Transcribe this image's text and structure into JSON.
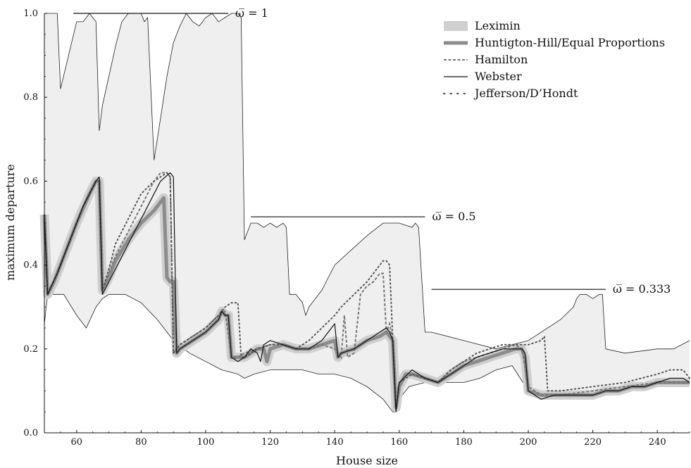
{
  "chart_data": {
    "type": "line",
    "xlabel": "House size",
    "ylabel": "maximum departure",
    "xlim": [
      50,
      250
    ],
    "ylim": [
      0,
      1
    ],
    "x_ticks": [
      60,
      80,
      100,
      120,
      140,
      160,
      180,
      200,
      220,
      240
    ],
    "y_ticks": [
      0.0,
      0.2,
      0.4,
      0.6,
      0.8,
      1.0
    ],
    "x_tick_labels": [
      "60",
      "80",
      "100",
      "120",
      "140",
      "160",
      "180",
      "200",
      "220",
      "240"
    ],
    "y_tick_labels": [
      "0.0",
      "0.2",
      "0.4",
      "0.6",
      "0.8",
      "1.0"
    ],
    "legend_position": "top-right",
    "legend": [
      {
        "label": "Leximin",
        "style": "band"
      },
      {
        "label": "Huntigton-Hill/Equal Proportions",
        "style": "thick"
      },
      {
        "label": "Hamilton",
        "style": "dashed"
      },
      {
        "label": "Webster",
        "style": "thin"
      },
      {
        "label": "Jefferson/D’Hondt",
        "style": "dotted"
      }
    ],
    "annotations": [
      {
        "label": "ω̅ = 1",
        "y": 1.0,
        "x_start": 59,
        "x_end": 107
      },
      {
        "label": "ω̅ = 0.5",
        "y": 0.515,
        "x_start": 114,
        "x_end": 168
      },
      {
        "label": "ω̅ = 0.333",
        "y": 0.342,
        "x_start": 170,
        "x_end": 224
      }
    ],
    "series": [
      {
        "name": "Leximin range upper",
        "x": [
          50,
          54,
          55,
          60,
          62,
          64,
          66,
          67,
          68,
          72,
          74,
          76,
          80,
          81,
          82,
          84,
          86,
          88,
          90,
          92,
          94,
          96,
          98,
          100,
          102,
          104,
          106,
          108,
          110,
          111,
          112,
          114,
          116,
          118,
          120,
          122,
          124,
          125,
          126,
          128,
          130,
          131,
          132,
          134,
          136,
          138,
          140,
          150,
          155,
          160,
          164,
          165,
          166,
          168,
          170,
          180,
          190,
          200,
          210,
          214,
          215,
          216,
          218,
          220,
          222,
          223,
          224,
          230,
          240,
          245,
          250
        ],
        "y": [
          1.0,
          1.0,
          0.82,
          0.98,
          0.98,
          1.0,
          0.98,
          0.72,
          0.78,
          0.92,
          0.98,
          1.0,
          1.0,
          0.98,
          0.99,
          0.65,
          0.75,
          0.85,
          0.93,
          0.97,
          1.0,
          0.98,
          0.97,
          0.99,
          1.0,
          0.98,
          0.99,
          1.0,
          1.0,
          0.99,
          0.46,
          0.5,
          0.5,
          0.49,
          0.5,
          0.49,
          0.5,
          0.49,
          0.33,
          0.33,
          0.31,
          0.28,
          0.3,
          0.32,
          0.34,
          0.37,
          0.4,
          0.47,
          0.5,
          0.5,
          0.49,
          0.5,
          0.49,
          0.24,
          0.24,
          0.22,
          0.2,
          0.22,
          0.27,
          0.3,
          0.32,
          0.33,
          0.33,
          0.32,
          0.33,
          0.33,
          0.2,
          0.19,
          0.2,
          0.2,
          0.22
        ]
      },
      {
        "name": "Leximin range lower",
        "x": [
          50,
          51,
          52,
          54,
          56,
          60,
          63,
          66,
          68,
          70,
          75,
          80,
          85,
          90,
          95,
          100,
          105,
          110,
          112,
          115,
          120,
          125,
          130,
          135,
          140,
          145,
          150,
          155,
          158,
          159,
          160,
          163,
          168,
          170,
          175,
          180,
          185,
          190,
          195,
          200,
          205,
          210,
          215,
          220,
          225,
          230,
          240,
          250
        ],
        "y": [
          0.26,
          0.33,
          0.33,
          0.33,
          0.33,
          0.28,
          0.25,
          0.3,
          0.32,
          0.33,
          0.33,
          0.31,
          0.27,
          0.22,
          0.19,
          0.17,
          0.15,
          0.14,
          0.13,
          0.14,
          0.15,
          0.15,
          0.15,
          0.14,
          0.14,
          0.13,
          0.11,
          0.08,
          0.05,
          0.05,
          0.08,
          0.11,
          0.12,
          0.12,
          0.12,
          0.12,
          0.13,
          0.15,
          0.16,
          0.1,
          0.09,
          0.08,
          0.09,
          0.09,
          0.09,
          0.1,
          0.11,
          0.12
        ]
      },
      {
        "name": "Huntigton-Hill/Equal Proportions",
        "x": [
          50,
          51,
          53,
          56,
          60,
          64,
          66,
          67,
          68,
          70,
          72,
          76,
          80,
          84,
          86,
          87,
          88,
          89,
          90,
          91,
          92,
          96,
          100,
          104,
          105,
          106,
          107,
          108,
          110,
          112,
          114,
          116,
          118,
          119,
          120,
          124,
          128,
          132,
          136,
          140,
          141,
          142,
          146,
          150,
          154,
          156,
          157,
          158,
          159,
          160,
          162,
          164,
          168,
          172,
          176,
          180,
          184,
          188,
          192,
          196,
          198,
          199,
          200,
          204,
          208,
          212,
          216,
          220,
          224,
          228,
          232,
          236,
          240,
          244,
          248,
          250
        ],
        "y": [
          0.52,
          0.33,
          0.36,
          0.42,
          0.5,
          0.57,
          0.6,
          0.6,
          0.34,
          0.37,
          0.41,
          0.46,
          0.5,
          0.53,
          0.55,
          0.56,
          0.37,
          0.36,
          0.36,
          0.19,
          0.2,
          0.22,
          0.24,
          0.27,
          0.29,
          0.28,
          0.28,
          0.18,
          0.18,
          0.18,
          0.19,
          0.2,
          0.2,
          0.17,
          0.2,
          0.21,
          0.2,
          0.2,
          0.21,
          0.22,
          0.18,
          0.19,
          0.2,
          0.22,
          0.23,
          0.24,
          0.23,
          0.22,
          0.06,
          0.11,
          0.14,
          0.14,
          0.13,
          0.12,
          0.14,
          0.16,
          0.17,
          0.18,
          0.19,
          0.2,
          0.2,
          0.18,
          0.1,
          0.09,
          0.09,
          0.09,
          0.09,
          0.09,
          0.1,
          0.1,
          0.11,
          0.11,
          0.12,
          0.12,
          0.12,
          0.12
        ]
      },
      {
        "name": "Hamilton",
        "x": [
          50,
          51,
          54,
          58,
          62,
          66,
          67,
          68,
          70,
          72,
          76,
          80,
          84,
          86,
          88,
          89,
          90,
          91,
          92,
          96,
          100,
          104,
          106,
          108,
          110,
          112,
          116,
          120,
          124,
          128,
          132,
          136,
          140,
          142,
          143,
          144,
          146,
          148,
          150,
          152,
          154,
          155,
          156,
          157,
          158,
          159,
          160,
          164,
          168,
          172,
          176,
          180,
          184,
          188,
          192,
          196,
          198,
          200,
          204,
          205,
          206,
          210,
          220,
          230,
          240,
          250
        ],
        "y": [
          0.52,
          0.33,
          0.38,
          0.46,
          0.54,
          0.6,
          0.6,
          0.34,
          0.38,
          0.42,
          0.48,
          0.54,
          0.6,
          0.62,
          0.62,
          0.61,
          0.19,
          0.2,
          0.21,
          0.23,
          0.25,
          0.28,
          0.29,
          0.18,
          0.18,
          0.19,
          0.2,
          0.21,
          0.21,
          0.2,
          0.2,
          0.21,
          0.2,
          0.18,
          0.28,
          0.18,
          0.19,
          0.33,
          0.35,
          0.36,
          0.38,
          0.38,
          0.24,
          0.26,
          0.22,
          0.06,
          0.12,
          0.14,
          0.13,
          0.12,
          0.15,
          0.17,
          0.18,
          0.19,
          0.2,
          0.21,
          0.2,
          0.11,
          0.09,
          0.09,
          0.09,
          0.09,
          0.1,
          0.11,
          0.12,
          0.12
        ]
      },
      {
        "name": "Webster",
        "x": [
          50,
          51,
          54,
          58,
          62,
          66,
          67,
          68,
          70,
          74,
          78,
          82,
          86,
          89,
          90,
          91,
          92,
          96,
          100,
          104,
          105,
          106,
          107,
          108,
          110,
          112,
          114,
          116,
          117,
          118,
          120,
          124,
          128,
          132,
          136,
          139,
          140,
          141,
          142,
          146,
          150,
          154,
          156,
          157,
          158,
          159,
          160,
          164,
          168,
          172,
          176,
          180,
          184,
          188,
          192,
          196,
          198,
          199,
          200,
          204,
          208,
          212,
          216,
          220,
          224,
          228,
          232,
          236,
          240,
          244,
          248,
          250
        ],
        "y": [
          0.52,
          0.33,
          0.38,
          0.46,
          0.54,
          0.6,
          0.61,
          0.33,
          0.36,
          0.42,
          0.48,
          0.54,
          0.6,
          0.62,
          0.61,
          0.19,
          0.2,
          0.22,
          0.24,
          0.27,
          0.29,
          0.28,
          0.28,
          0.18,
          0.17,
          0.18,
          0.2,
          0.19,
          0.17,
          0.21,
          0.22,
          0.21,
          0.2,
          0.2,
          0.22,
          0.25,
          0.26,
          0.18,
          0.19,
          0.2,
          0.22,
          0.24,
          0.25,
          0.24,
          0.22,
          0.05,
          0.12,
          0.15,
          0.13,
          0.12,
          0.14,
          0.16,
          0.18,
          0.19,
          0.2,
          0.2,
          0.2,
          0.19,
          0.1,
          0.08,
          0.09,
          0.09,
          0.09,
          0.09,
          0.1,
          0.1,
          0.11,
          0.11,
          0.12,
          0.13,
          0.13,
          0.12
        ]
      },
      {
        "name": "Jefferson/D’Hondt",
        "x": [
          50,
          51,
          54,
          58,
          62,
          66,
          67,
          68,
          70,
          72,
          76,
          80,
          84,
          86,
          88,
          89,
          90,
          91,
          92,
          96,
          100,
          104,
          106,
          108,
          110,
          111,
          112,
          114,
          116,
          120,
          124,
          128,
          132,
          136,
          140,
          142,
          146,
          150,
          152,
          154,
          155,
          156,
          157,
          158,
          159,
          160,
          164,
          168,
          172,
          176,
          180,
          184,
          188,
          192,
          196,
          200,
          204,
          205,
          206,
          210,
          220,
          230,
          240,
          244,
          248,
          250
        ],
        "y": [
          0.52,
          0.33,
          0.38,
          0.46,
          0.54,
          0.6,
          0.6,
          0.34,
          0.39,
          0.45,
          0.51,
          0.57,
          0.6,
          0.61,
          0.62,
          0.61,
          0.19,
          0.2,
          0.21,
          0.23,
          0.25,
          0.28,
          0.3,
          0.31,
          0.31,
          0.18,
          0.18,
          0.19,
          0.2,
          0.21,
          0.21,
          0.2,
          0.22,
          0.25,
          0.28,
          0.3,
          0.33,
          0.36,
          0.38,
          0.4,
          0.41,
          0.41,
          0.4,
          0.22,
          0.06,
          0.12,
          0.14,
          0.13,
          0.12,
          0.15,
          0.17,
          0.19,
          0.2,
          0.21,
          0.21,
          0.21,
          0.22,
          0.23,
          0.1,
          0.1,
          0.11,
          0.12,
          0.14,
          0.15,
          0.15,
          0.13
        ]
      }
    ]
  }
}
